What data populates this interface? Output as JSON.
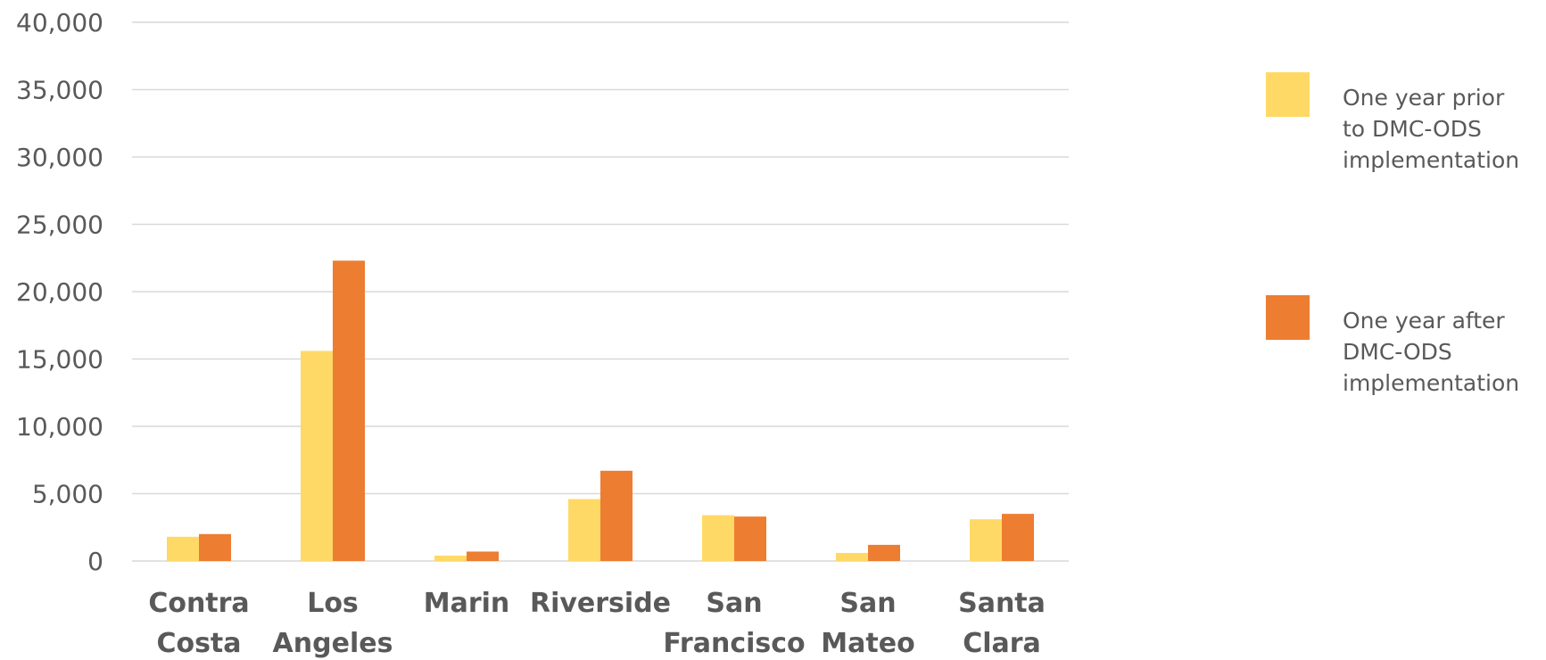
{
  "chart_data": {
    "type": "bar",
    "categories": [
      [
        "Contra",
        "Costa"
      ],
      [
        "Los",
        "Angeles"
      ],
      [
        "Marin"
      ],
      [
        "Riverside"
      ],
      [
        "San",
        "Francisco"
      ],
      [
        "San",
        "Mateo"
      ],
      [
        "Santa",
        "Clara"
      ]
    ],
    "series": [
      {
        "name_lines": [
          "One year prior",
          "to DMC-ODS",
          "implementation"
        ],
        "color": "#FFD966",
        "values": [
          1800,
          15600,
          400,
          4600,
          3400,
          600,
          3100
        ]
      },
      {
        "name_lines": [
          "One year after",
          "DMC-ODS",
          "implementation"
        ],
        "color": "#ED7D31",
        "values": [
          2000,
          22300,
          700,
          6700,
          3300,
          1200,
          3500
        ]
      }
    ],
    "ylim": [
      0,
      40000
    ],
    "yticks": [
      "0",
      "5,000",
      "10,000",
      "15,000",
      "20,000",
      "25,000",
      "30,000",
      "35,000",
      "40,000"
    ],
    "grid": true,
    "legend_position": "right",
    "title": "",
    "xlabel": "",
    "ylabel": ""
  }
}
